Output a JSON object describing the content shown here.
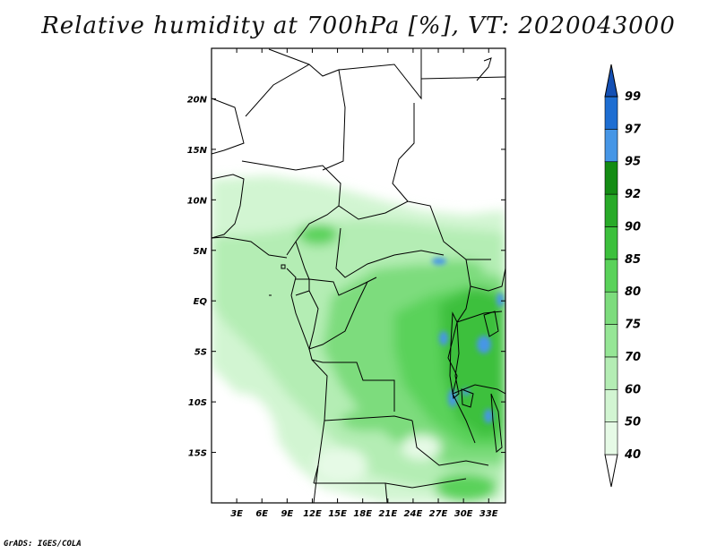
{
  "title": "Relative humidity at 700hPa [%], VT: 2020043000",
  "credit": "GrADS: IGES/COLA",
  "map": {
    "lon_range": [
      0,
      35
    ],
    "lat_range": [
      -20,
      25
    ],
    "lon_ticks": [
      "3E",
      "6E",
      "9E",
      "12E",
      "15E",
      "18E",
      "21E",
      "24E",
      "27E",
      "30E",
      "33E"
    ],
    "lat_ticks": [
      "20N",
      "15N",
      "10N",
      "5N",
      "EQ",
      "5S",
      "10S",
      "15S"
    ]
  },
  "colorbar": {
    "levels": [
      "40",
      "50",
      "60",
      "70",
      "75",
      "80",
      "85",
      "90",
      "92",
      "95",
      "97",
      "99"
    ],
    "colors": [
      "#ffffff",
      "#e6fae6",
      "#d2f5d2",
      "#b4edb4",
      "#96e696",
      "#7ddc7d",
      "#5ad25a",
      "#3cc03c",
      "#28aa28",
      "#148c14",
      "#4696e6",
      "#1e6ed2",
      "#1450b4"
    ]
  }
}
